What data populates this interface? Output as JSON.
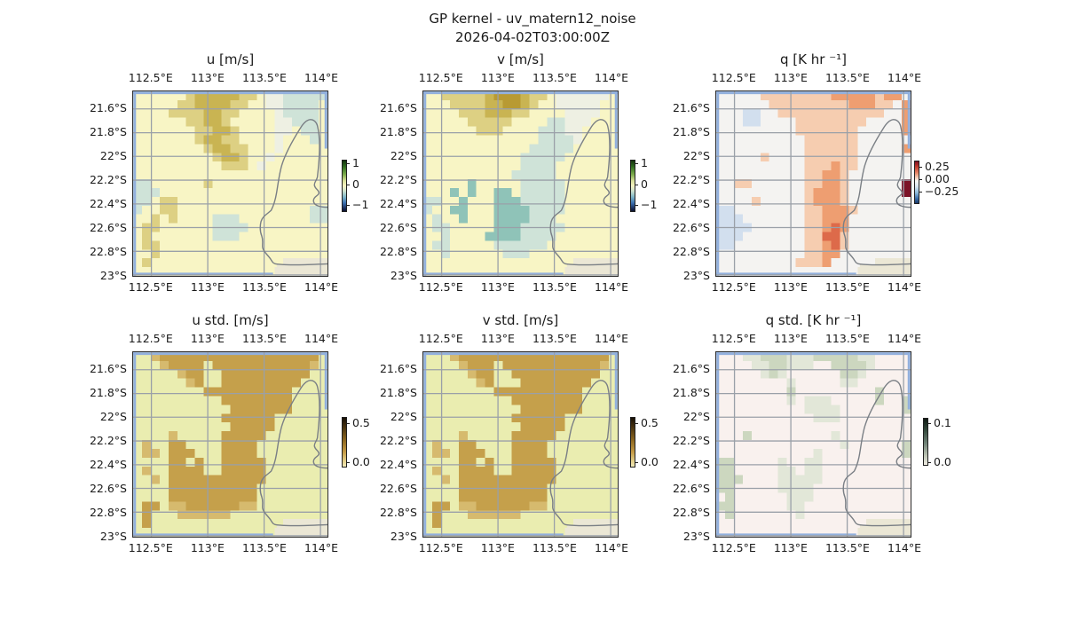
{
  "figure": {
    "suptitle_line1": "GP kernel - uv_matern12_noise",
    "suptitle_line2": "2026-04-02T03:00:00Z"
  },
  "colors": {
    "ocean_edge_blue": "#92b0dd",
    "gridline_gray": "#9aa0a8",
    "coastline_gray": "#7a7f85",
    "land_beige": "#ebe7d5",
    "background": "#ffffff"
  },
  "chart_data": [
    {
      "type": "heatmap",
      "title": "u [m/s]",
      "x_ticks": [
        "112.5°E",
        "113°E",
        "113.5°E",
        "114°E"
      ],
      "y_ticks": [
        "21.6°S",
        "21.8°S",
        "22°S",
        "22.2°S",
        "22.4°S",
        "22.6°S",
        "22.8°S",
        "23°S"
      ],
      "colorbar_ticks": [
        "1",
        "0",
        "−1"
      ],
      "colorbar_range": [
        -1,
        1
      ],
      "value_key": {
        ".": "≈0",
        "o": "≈+0.3",
        "O": "≈+0.5",
        "D": "≈+0.7",
        "w": "≈−0.1",
        "t": "≈−0.3",
        "T": "≈−0.6",
        "L": "no data / land"
      },
      "palette": {
        ".": "#f8f5c5",
        "o": "#ddd083",
        "O": "#c9b452",
        "D": "#b89a33",
        "w": "#eef0e3",
        "t": "#cfe3d8",
        "T": "#8fc3b8",
        "L": "#ebe7d5"
      },
      "grid_rows": [
        "......oOOOOOoo.wwttttt",
        ".....ooOOOOoo..wwtttt.",
        "....ooooOOoo....wtttt.",
        "......ooOOo.....wwttt.",
        ".......ooOOo....ww.tt.",
        ".......oOOoo....w...t.",
        "........oOOoo...w.....",
        ".........oOOo..w......",
        "..........ooo.w.......",
        "......................",
        "tt......o.............",
        "ttt...................",
        "tt.oo.................",
        "t..oo...............tt",
        "..o.o....ttt........tt",
        ".oo......tttt.........",
        ".o.......ttt..........",
        ".oo...................",
        "..o...................",
        ".o...............LLLLL",
        "................LLLLLL"
      ]
    },
    {
      "type": "heatmap",
      "title": "v [m/s]",
      "x_ticks": [
        "112.5°E",
        "113°E",
        "113.5°E",
        "114°E"
      ],
      "y_ticks": [
        "21.6°S",
        "21.8°S",
        "22°S",
        "22.2°S",
        "22.4°S",
        "22.6°S",
        "22.8°S",
        "23°S"
      ],
      "colorbar_ticks": [
        "1",
        "0",
        "−1"
      ],
      "colorbar_range": [
        -1,
        1
      ],
      "value_key": {
        ".": "≈0",
        "o": "≈+0.3",
        "O": "≈+0.5",
        "D": "≈+0.7",
        "w": "≈−0.1",
        "t": "≈−0.3",
        "T": "≈−0.6",
        "L": "no data / land"
      },
      "palette": {
        ".": "#f8f5c5",
        "o": "#ddd083",
        "O": "#c9b452",
        "D": "#b89a33",
        "w": "#eef0e3",
        "t": "#cfe3d8",
        "T": "#8fc3b8",
        "L": "#ebe7d5"
      },
      "grid_rows": [
        "..oooooODDDOoo.wwwwww.",
        "...ooooOODDOo..wwwww..",
        "....oooOOOoo....wwww..",
        ".....ooooo....ttwww...",
        "......ooo....tttww....",
        ".............ttttw....",
        "............ttttt.....",
        "...........ttttt......",
        "...........tttt.......",
        "..........ttttt.......",
        ".....T.....ttttt......",
        "...T.T..TT.ttttt......",
        "tt..T...TTTttttt......",
        "t..TT...TTTTtttt......",
        ".t..T...TTTTttt.......",
        ".tt.....TTTttttt......",
        "..t....TTTTtttt.......",
        ".tt.....tttttt........",
        "..t......ttt..........",
        ".................LLLLL",
        "................LLLLLL"
      ]
    },
    {
      "type": "heatmap",
      "title": "q [K hr ⁻¹]",
      "x_ticks": [
        "112.5°E",
        "113°E",
        "113.5°E",
        "114°E"
      ],
      "y_ticks": [
        "21.6°S",
        "21.8°S",
        "22°S",
        "22.2°S",
        "22.4°S",
        "22.6°S",
        "22.8°S",
        "23°S"
      ],
      "colorbar_ticks": [
        "0.25",
        "0.00",
        "−0.25"
      ],
      "colorbar_range": [
        -0.25,
        0.25
      ],
      "value_key": {
        ".": "≈0",
        "p": "≈+0.05",
        "P": "≈+0.12",
        "R": "≈+0.2",
        "M": "≈+0.35 (saturated)",
        "b": "≈−0.05",
        "L": "no data / land"
      },
      "palette": {
        ".": "#f4f3f1",
        "p": "#f6cdb0",
        "P": "#ee9e71",
        "R": "#dd6a4a",
        "M": "#7c1327",
        "b": "#d2dfee",
        "L": "#ebe7d5"
      },
      "grid_rows": [
        ".....ppppppppPPPPPpPP.",
        "......pppppppppPPPpp.P",
        "...bb..pppppppppppp..P",
        "...bb....pppppppp....P",
        ".........ppppppp.....P",
        "..........pppppp......",
        "..........pppppp.....P",
        ".....p....pppppp......",
        "..........pppPpp......",
        "..........ppPPp.......",
        "..pp......ppPPp......M",
        "..........pPPPp......M",
        "....p.....pPPPp.......",
        "bb........ppPPPp......",
        "bbb.......ppPPP.......",
        "bbbb......ppPRP.......",
        "bbb.......ppRRp.......",
        "bb........ppPRp.......",
        "..........ppPP........",
        ".........pppP.....LLLL",
        "................LLLLLL"
      ]
    },
    {
      "type": "heatmap",
      "title": "u std. [m/s]",
      "x_ticks": [
        "112.5°E",
        "113°E",
        "113.5°E",
        "114°E"
      ],
      "y_ticks": [
        "21.6°S",
        "21.8°S",
        "22°S",
        "22.2°S",
        "22.4°S",
        "22.6°S",
        "22.8°S",
        "23°S"
      ],
      "colorbar_ticks": [
        "0.5",
        "0.0"
      ],
      "colorbar_range": [
        0,
        0.5
      ],
      "value_key": {
        ".": "≈0.05",
        "n": "≈0.25",
        "N": "≈0.35",
        "L": "no data / land"
      },
      "palette": {
        ".": "#eaedb0",
        "n": "#d6ba6e",
        "N": "#c5a04b",
        "L": "#ebe7d5"
      },
      "grid_rows": [
        "..nNNNNNNNNNNNNNNNNNN.",
        "...nNNNN.NNNNNNNNNNNn.",
        ".....nNN..NNNNNNNNNN..",
        "......nN..NNNNNNNNN...",
        "........NNNNNNNNNN....",
        "..........NNNNNNNN....",
        "...........NNNNNNN....",
        "..........NNNNNN......",
        "...........NNNNN......",
        "....n.....NNNNN.......",
        ".n..NN....NNNN........",
        ".nn.NNN...NNNN........",
        "....NN.N..NNNNN.......",
        ".n..NNNN..NNNNN.......",
        "..n.NNNNNNNNNNN.......",
        "....NNNNNNNNNN........",
        "....NNNNNNNNNN........",
        ".NN.nnNNNNNNnn........",
        ".N...nnnnnn...........",
        ".N...............LLLLL",
        "................LLLLLL"
      ]
    },
    {
      "type": "heatmap",
      "title": "v std. [m/s]",
      "x_ticks": [
        "112.5°E",
        "113°E",
        "113.5°E",
        "114°E"
      ],
      "y_ticks": [
        "21.6°S",
        "21.8°S",
        "22°S",
        "22.2°S",
        "22.4°S",
        "22.6°S",
        "22.8°S",
        "23°S"
      ],
      "colorbar_ticks": [
        "0.5",
        "0.0"
      ],
      "colorbar_range": [
        0,
        0.5
      ],
      "value_key": {
        ".": "≈0.05",
        "n": "≈0.25",
        "N": "≈0.35",
        "L": "no data / land"
      },
      "palette": {
        ".": "#eaedb0",
        "n": "#d6ba6e",
        "N": "#c5a04b",
        "L": "#ebe7d5"
      },
      "grid_rows": [
        "...nNNNNNNNNNNNNNNNNN.",
        "....nNNN.NNNNNNNNNNNn.",
        ".....nNN..NNNNNNNNNN..",
        "......nN...NNNNNNNN...",
        "........NNNNNNNNNN....",
        "..........NNNNNNNN....",
        "...........NNNNNNN....",
        "..........NNNNNN......",
        "...........NNNNN......",
        "....n.....NNNNN.......",
        ".n..NN....NNNN........",
        ".nn.NNN...NNNN........",
        "....NN.N..NNNNN.......",
        ".n..NNNN..NNNNN.......",
        "..n.NNNNNNNNNNN.......",
        "....NNNNNNNNNN........",
        "....NNNNNNNNNN........",
        ".NN.nnNNNNNNnn........",
        ".N...nnnnnn...........",
        ".N...............LLLLL",
        "................LLLLLL"
      ]
    },
    {
      "type": "heatmap",
      "title": "q std. [K hr ⁻¹]",
      "x_ticks": [
        "112.5°E",
        "113°E",
        "113.5°E",
        "114°E"
      ],
      "y_ticks": [
        "21.6°S",
        "21.8°S",
        "22°S",
        "22.2°S",
        "22.4°S",
        "22.6°S",
        "22.8°S",
        "23°S"
      ],
      "colorbar_ticks": [
        "0.1",
        "0.0"
      ],
      "colorbar_range": [
        0,
        0.1
      ],
      "value_key": {
        ".": "≈0.01",
        "h": "≈0.03",
        "g": "≈0.05",
        "L": "no data / land"
      },
      "palette": {
        ".": "#f9f1ee",
        "g": "#ccd7bf",
        "h": "#e2e7d8",
        "L": "#ebe7d5"
      },
      "grid_rows": [
        "...hhggghhhggggghh....",
        "....hhgghhh..ggggh....",
        ".....hgh......ggh.....",
        "........h.....hh......",
        "........g.........g...",
        "........h.hhh.....g..g",
        "..........hhhh.......g",
        "...........hhh........",
        "......................",
        "...g.........h........",
        "..............h......g",
        "...........h.........g",
        "gg.....h..hh..........",
        "gg.....hh.hh..........",
        "ggg....hhhhh..........",
        "gg.....hhhh...........",
        ".g......hhh...........",
        "gg......hh............",
        ".g.......h............",
        ".................LLLLL",
        "................LLLLLL"
      ]
    }
  ]
}
